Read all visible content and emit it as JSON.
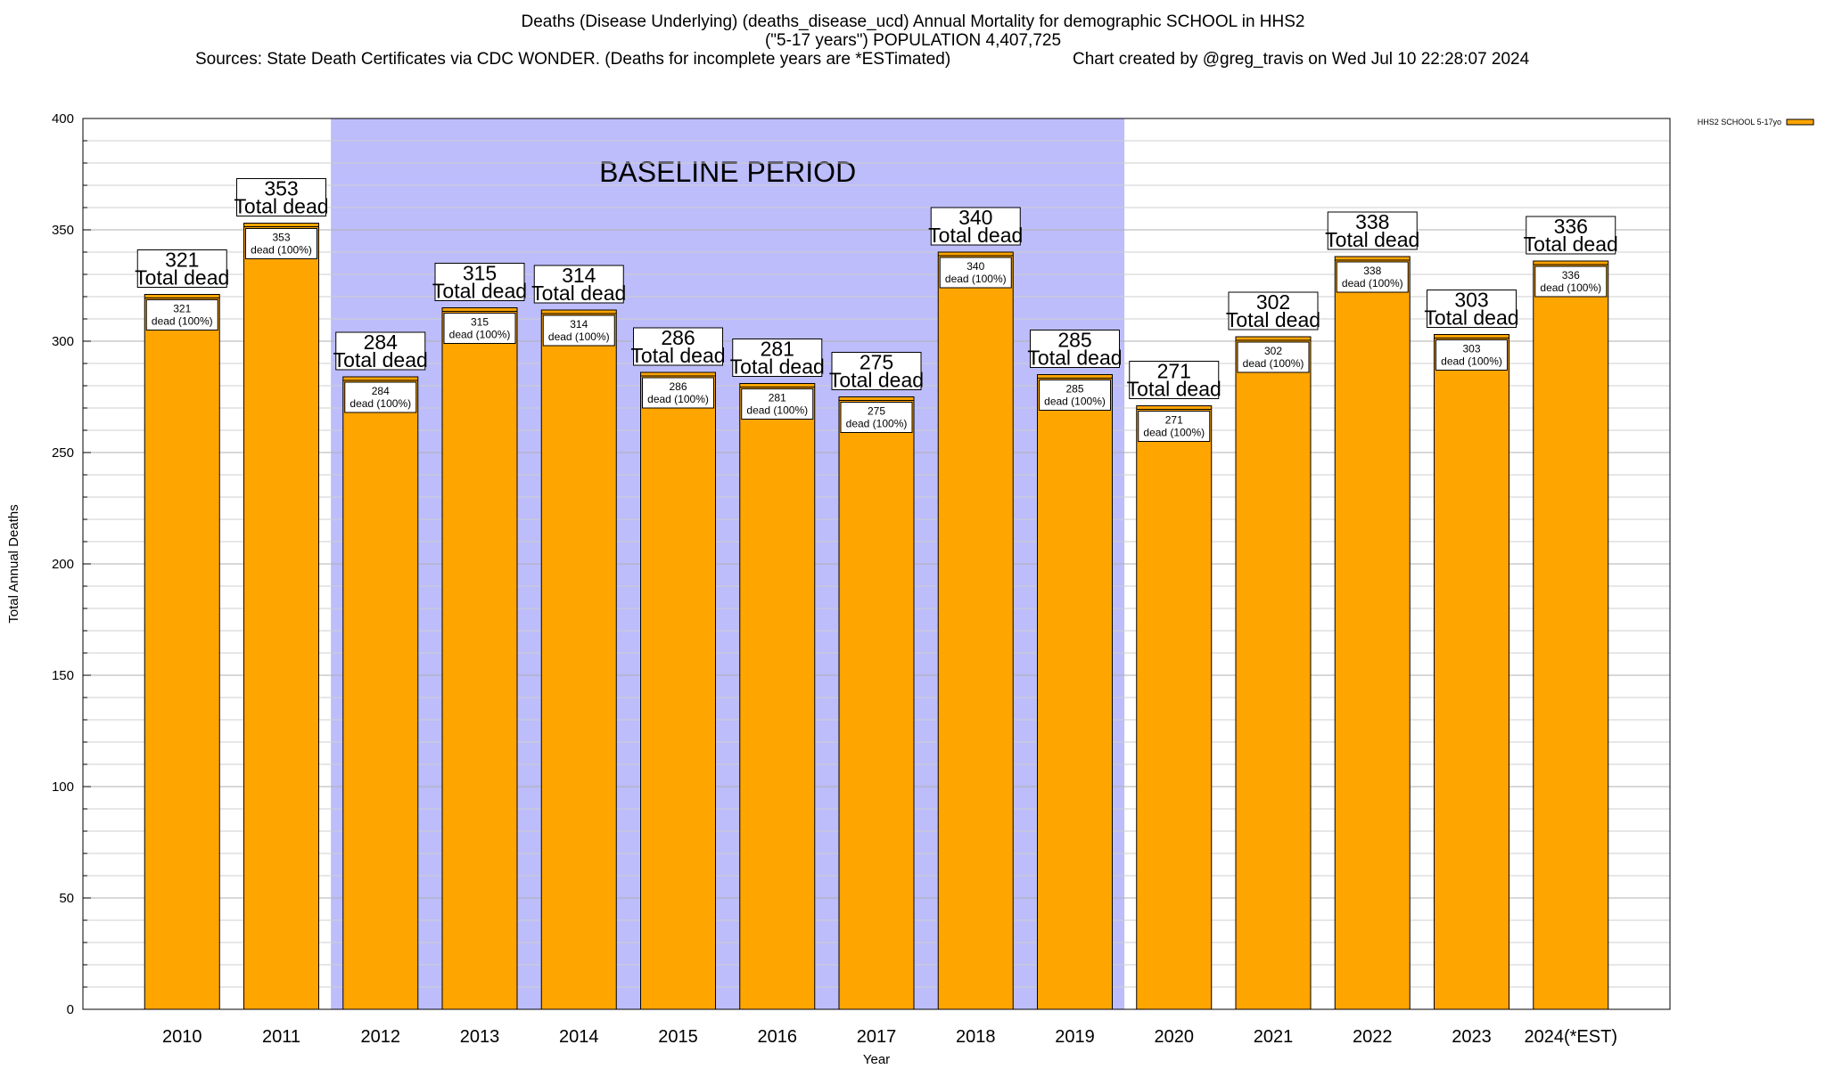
{
  "header": {
    "title_line1": "Deaths (Disease Underlying) (deaths_disease_ucd) Annual Mortality for demographic SCHOOL in HHS2",
    "title_line2": "(\"5-17 years\") POPULATION 4,407,725",
    "sources": "Sources: State Death Certificates via CDC WONDER. (Deaths for incomplete years are *ESTimated)",
    "credit": "Chart created by @greg_travis on Wed Jul 10 22:28:07 2024"
  },
  "chart_data": {
    "type": "bar",
    "categories": [
      "2010",
      "2011",
      "2012",
      "2013",
      "2014",
      "2015",
      "2016",
      "2017",
      "2018",
      "2019",
      "2020",
      "2021",
      "2022",
      "2023",
      "2024(*EST)"
    ],
    "series": [
      {
        "name": "HHS2 SCHOOL 5-17yo",
        "color": "#ffa500",
        "values": [
          321,
          353,
          284,
          315,
          314,
          286,
          281,
          275,
          340,
          285,
          271,
          302,
          338,
          303,
          336
        ]
      }
    ],
    "bar_top_labels": [
      "321\nTotal dead",
      "353\nTotal dead",
      "284\nTotal dead",
      "315\nTotal dead",
      "314\nTotal dead",
      "286\nTotal dead",
      "281\nTotal dead",
      "275\nTotal dead",
      "340\nTotal dead",
      "285\nTotal dead",
      "271\nTotal dead",
      "302\nTotal dead",
      "338\nTotal dead",
      "303\nTotal dead",
      "336\nTotal dead"
    ],
    "bar_inner_labels": [
      "321\ndead (100%)",
      "353\ndead (100%)",
      "284\ndead (100%)",
      "315\ndead (100%)",
      "314\ndead (100%)",
      "286\ndead (100%)",
      "281\ndead (100%)",
      "275\ndead (100%)",
      "340\ndead (100%)",
      "285\ndead (100%)",
      "271\ndead (100%)",
      "302\ndead (100%)",
      "338\ndead (100%)",
      "303\ndead (100%)",
      "336\ndead (100%)"
    ],
    "xlabel": "Year",
    "ylabel": "Total Annual Deaths",
    "ylim": [
      0,
      400
    ],
    "yticks": [
      0,
      50,
      100,
      150,
      200,
      250,
      300,
      350,
      400
    ],
    "y_minor_step": 10,
    "grid": true,
    "legend_position": "top-right",
    "baseline_band": {
      "label": "BASELINE PERIOD",
      "from": "2012",
      "to": "2019",
      "color": "#bdbdfb"
    }
  }
}
